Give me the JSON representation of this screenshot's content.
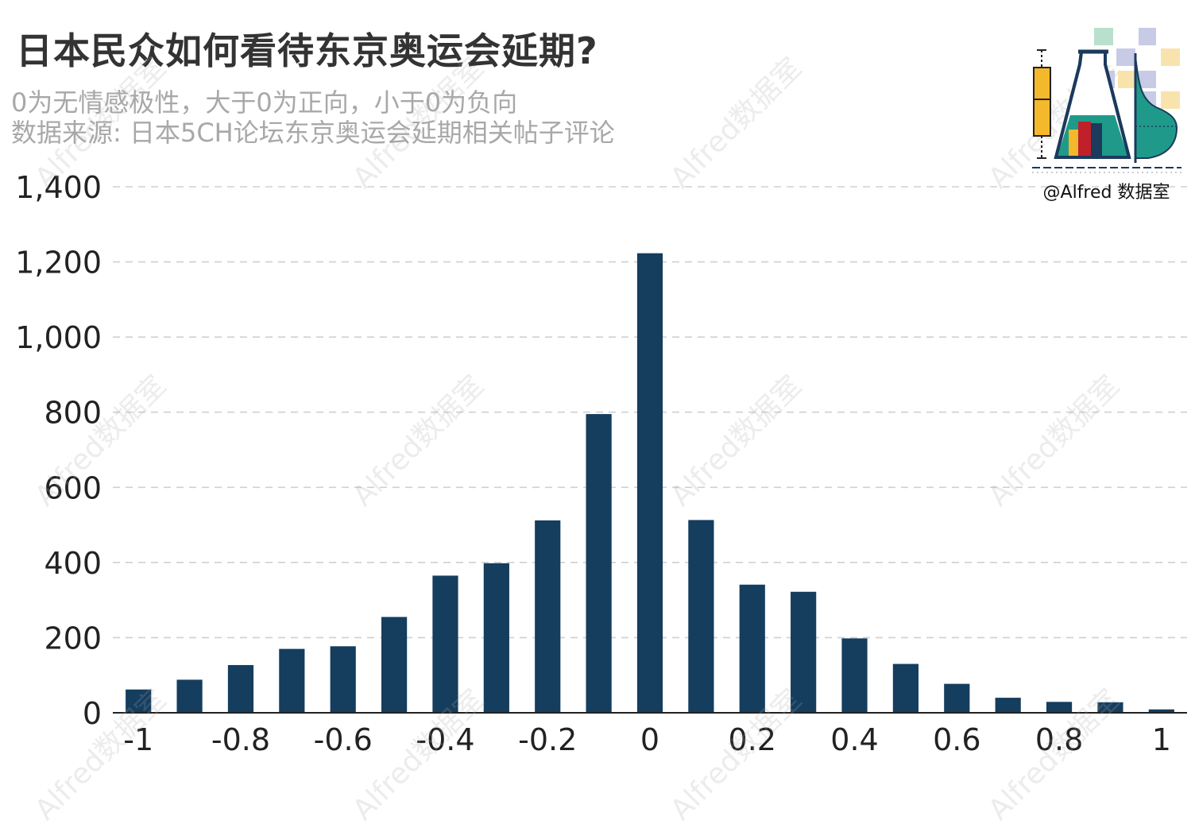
{
  "title": "日本民众如何看待东京奥运会延期?",
  "subtitle_lines": [
    "0为无情感极性，大于0为正向，小于0为负向",
    "数据来源: 日本5CH论坛东京奥运会延期相关帖子评论"
  ],
  "watermark": "Alfred数据室",
  "logo_text": "@Alfred 数据室",
  "colors": {
    "bar": "#143d5e",
    "grid": "#d0d0d0",
    "axis": "#222222",
    "title": "#333333",
    "subtitle": "#a8a8a8"
  },
  "chart_data": {
    "type": "bar",
    "x": [
      -1,
      -0.9,
      -0.8,
      -0.7,
      -0.6,
      -0.5,
      -0.4,
      -0.3,
      -0.2,
      -0.1,
      0,
      0.1,
      0.2,
      0.3,
      0.4,
      0.5,
      0.6,
      0.7,
      0.8,
      0.9,
      1
    ],
    "values": [
      62,
      88,
      127,
      170,
      177,
      255,
      365,
      398,
      512,
      795,
      1223,
      513,
      341,
      322,
      198,
      130,
      77,
      40,
      29,
      28,
      9
    ],
    "x_ticks": [
      -1,
      -0.8,
      -0.6,
      -0.4,
      -0.2,
      0,
      0.2,
      0.4,
      0.6,
      0.8,
      1
    ],
    "x_tick_labels": [
      "-1",
      "-0.8",
      "-0.6",
      "-0.4",
      "-0.2",
      "0",
      "0.2",
      "0.4",
      "0.6",
      "0.8",
      "1"
    ],
    "y_ticks": [
      0,
      200,
      400,
      600,
      800,
      1000,
      1200,
      1400
    ],
    "y_tick_labels": [
      "0",
      "200",
      "400",
      "600",
      "800",
      "1,000",
      "1,200",
      "1,400"
    ],
    "ylim": [
      0,
      1400
    ],
    "xlim": [
      -1.05,
      1.05
    ],
    "grid": "horizontal dashed",
    "xlabel": "",
    "ylabel": ""
  }
}
